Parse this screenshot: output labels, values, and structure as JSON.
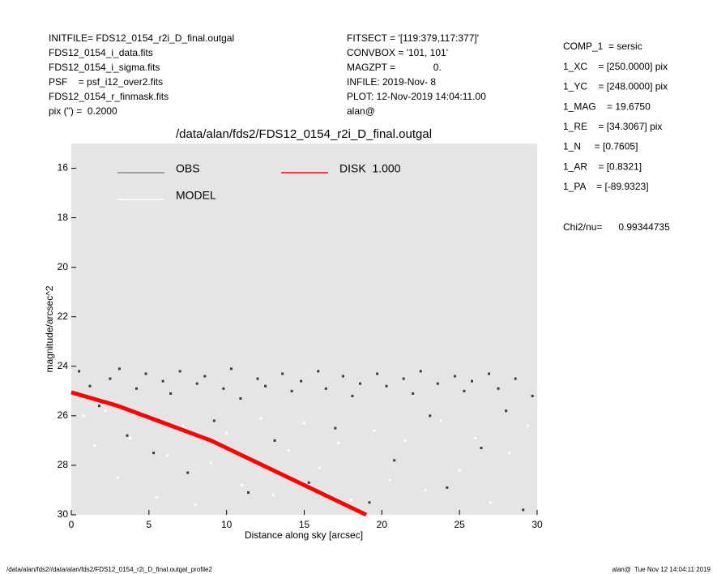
{
  "header": {
    "left": [
      "INITFILE= FDS12_0154_r2i_D_final.outgal",
      "FDS12_0154_i_data.fits",
      "FDS12_0154_i_sigma.fits",
      "PSF    = psf_i12_over2.fits",
      "FDS12_0154_r_finmask.fits",
      "pix (\") =  0.2000"
    ],
    "middle": [
      "FITSECT = '[119:379,117:377]'",
      "CONVBOX = '101, 101'",
      "MAGZPT =              0.",
      "INFILE: 2019-Nov- 8",
      "PLOT: 12-Nov-2019 14:04:11.00",
      "alan@"
    ],
    "params": [
      "COMP_1  = sersic",
      "1_XC    = [250.0000] pix",
      "1_YC    = [248.0000] pix",
      "1_MAG    = 19.6750",
      "1_RE    = [34.3067] pix",
      "1_N     = [0.7605]",
      "1_AR    = [0.8321]",
      "1_PA    = [-89.9323]"
    ],
    "chi2": "Chi2/nu=      0.99344735"
  },
  "footer": {
    "left": "/data/alan/fds2//data/alan/fds2/FDS12_0154_r2i_D_final.outgal_profile2",
    "right": "alan@  Tue Nov 12 14:04:11 2019"
  },
  "chart_data": {
    "type": "scatter",
    "title": "/data/alan/fds2/FDS12_0154_r2i_D_final.outgal",
    "xlabel": "Distance along sky [arcsec]",
    "ylabel": "magnitude/arcsec^2",
    "xlim": [
      0,
      30
    ],
    "xticks": [
      0,
      5,
      10,
      15,
      20,
      25,
      30
    ],
    "ylim": [
      30,
      15
    ],
    "yticks": [
      16,
      18,
      20,
      22,
      24,
      26,
      28,
      30
    ],
    "grid": false,
    "series": [
      {
        "name": "OBS",
        "color": "#3c3c3c",
        "legend_color": "#8a8a8a",
        "line": false,
        "x": [
          0.5,
          1.2,
          1.8,
          2.5,
          3.1,
          3.6,
          4.2,
          4.8,
          5.3,
          5.9,
          6.4,
          7.0,
          7.5,
          8.1,
          8.6,
          9.2,
          9.8,
          10.3,
          10.9,
          11.4,
          12.0,
          12.5,
          13.1,
          13.6,
          14.2,
          14.8,
          15.3,
          15.9,
          16.4,
          17.0,
          17.5,
          18.1,
          18.6,
          19.2,
          19.7,
          20.3,
          20.8,
          21.4,
          22.0,
          22.5,
          23.1,
          23.6,
          24.2,
          24.7,
          25.3,
          25.8,
          26.4,
          26.9,
          27.5,
          28.0,
          28.6,
          29.1,
          29.7
        ],
        "values": [
          24.2,
          24.8,
          25.6,
          24.5,
          24.1,
          26.8,
          24.9,
          24.3,
          27.5,
          24.6,
          25.1,
          24.2,
          28.3,
          24.7,
          24.4,
          26.2,
          24.9,
          24.1,
          25.3,
          29.1,
          24.5,
          24.8,
          27.0,
          24.3,
          25.0,
          24.6,
          28.7,
          24.2,
          24.9,
          26.5,
          24.4,
          25.2,
          24.7,
          29.5,
          24.3,
          24.8,
          27.8,
          24.5,
          25.1,
          24.2,
          26.0,
          24.7,
          28.9,
          24.4,
          25.0,
          24.6,
          27.3,
          24.3,
          24.9,
          25.8,
          24.5,
          29.8,
          25.2
        ]
      },
      {
        "name": "MODEL",
        "color": "#ffffff",
        "legend_color": "#ffffff",
        "line": false,
        "x": [
          0.8,
          1.5,
          2.2,
          3.0,
          3.8,
          4.5,
          5.5,
          6.2,
          7.2,
          8.0,
          9.0,
          10.0,
          11.0,
          12.2,
          13.0,
          14.0,
          15.0,
          16.0,
          17.2,
          18.0,
          19.5,
          20.5,
          21.5,
          22.8,
          23.8,
          25.0,
          26.0,
          27.0,
          28.2,
          29.4
        ],
        "values": [
          26.0,
          27.2,
          25.8,
          28.5,
          26.9,
          25.9,
          29.3,
          27.6,
          26.4,
          29.6,
          27.9,
          26.7,
          28.8,
          26.1,
          29.2,
          27.4,
          26.3,
          28.1,
          27.1,
          29.4,
          26.6,
          28.6,
          27.0,
          29.0,
          26.2,
          28.2,
          26.9,
          29.5,
          27.5,
          26.4
        ]
      },
      {
        "name": "DISK  1.000",
        "color": "#ff0000",
        "legend_color": "#ff0000",
        "line": true,
        "x": [
          0,
          3,
          6,
          9,
          12,
          15,
          18,
          19
        ],
        "values": [
          25.05,
          25.6,
          26.3,
          27.0,
          27.9,
          28.8,
          29.7,
          30.0
        ]
      }
    ]
  }
}
